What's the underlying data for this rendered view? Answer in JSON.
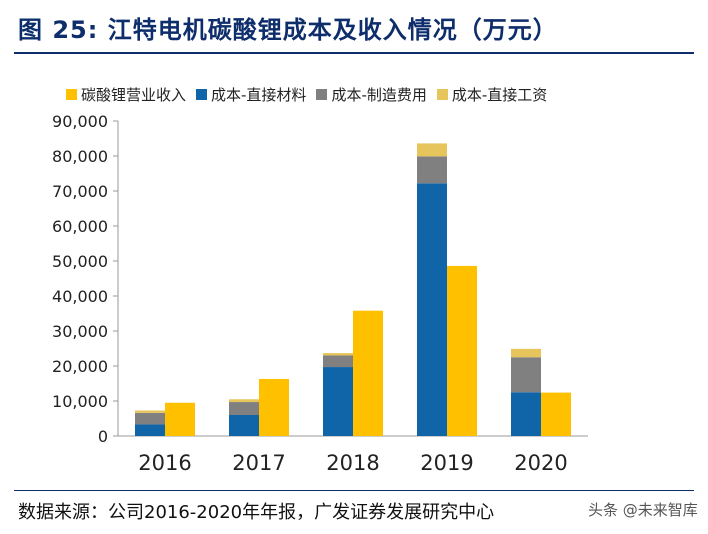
{
  "header": {
    "title": "图 25:  江特电机碳酸锂成本及收入情况（万元）"
  },
  "source": {
    "text": "数据来源：公司2016-2020年年报，广发证券发展研究中心",
    "watermark": "头条 @未来智库"
  },
  "chart_data": {
    "type": "bar",
    "stacked_series": [
      "成本-直接材料",
      "成本-制造费用",
      "成本-直接工资"
    ],
    "categories": [
      "2016",
      "2017",
      "2018",
      "2019",
      "2020"
    ],
    "series": [
      {
        "name": "碳酸锂营业收入",
        "color": "#ffc000",
        "values": [
          9500,
          16300,
          35800,
          48600,
          12400
        ]
      },
      {
        "name": "成本-直接材料",
        "color": "#1065a8",
        "values": [
          3300,
          6000,
          19700,
          72200,
          12500
        ]
      },
      {
        "name": "成本-制造费用",
        "color": "#808080",
        "values": [
          3300,
          3700,
          3300,
          7700,
          10000
        ]
      },
      {
        "name": "成本-直接工资",
        "color": "#e6c65c",
        "values": [
          700,
          800,
          700,
          3700,
          2400
        ]
      }
    ],
    "ylim": [
      0,
      90000
    ],
    "yticks": [
      "0",
      "10,000",
      "20,000",
      "30,000",
      "40,000",
      "50,000",
      "60,000",
      "70,000",
      "80,000",
      "90,000"
    ],
    "legend_position": "top"
  }
}
